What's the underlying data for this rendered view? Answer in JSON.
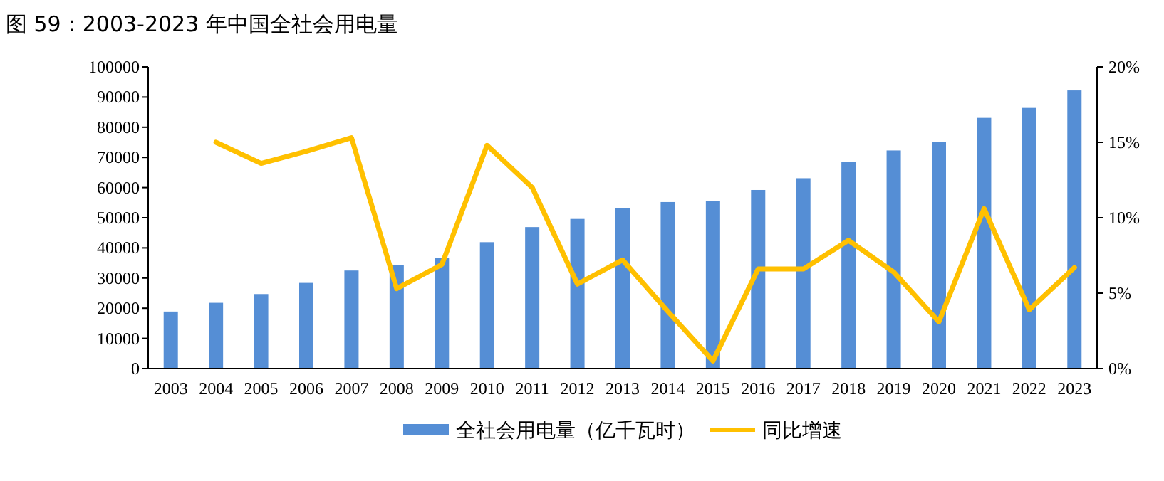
{
  "chart_data": {
    "type": "bar",
    "title": "图 59：2003-2023 年中国全社会用电量",
    "categories": [
      "2003",
      "2004",
      "2005",
      "2006",
      "2007",
      "2008",
      "2009",
      "2010",
      "2011",
      "2012",
      "2013",
      "2014",
      "2015",
      "2016",
      "2017",
      "2018",
      "2019",
      "2020",
      "2021",
      "2022",
      "2023"
    ],
    "series": [
      {
        "name": "全社会用电量（亿千瓦时）",
        "color": "#558ed5",
        "values": [
          18900,
          21800,
          24700,
          28400,
          32500,
          34300,
          36600,
          41900,
          46900,
          49600,
          53200,
          55200,
          55500,
          59200,
          63100,
          68400,
          72300,
          75100,
          83100,
          86400,
          92200
        ]
      },
      {
        "name": "同比增速",
        "type": "line",
        "axis": "y2",
        "color": "#ffc000",
        "values": [
          null,
          15.0,
          13.6,
          14.4,
          15.3,
          5.3,
          6.9,
          14.8,
          12.0,
          5.6,
          7.2,
          3.8,
          0.5,
          6.6,
          6.6,
          8.5,
          6.4,
          3.1,
          10.6,
          3.9,
          6.7
        ]
      }
    ],
    "ylim": [
      0,
      100000
    ],
    "yticks": [
      0,
      10000,
      20000,
      30000,
      40000,
      50000,
      60000,
      70000,
      80000,
      90000,
      100000
    ],
    "y2lim": [
      0,
      20
    ],
    "y2ticks": [
      {
        "value": 0,
        "label": "0%"
      },
      {
        "value": 5,
        "label": "5%"
      },
      {
        "value": 10,
        "label": "10%"
      },
      {
        "value": 15,
        "label": "15%"
      },
      {
        "value": 20,
        "label": "20%"
      }
    ],
    "grid": false,
    "legend": "bottom"
  }
}
